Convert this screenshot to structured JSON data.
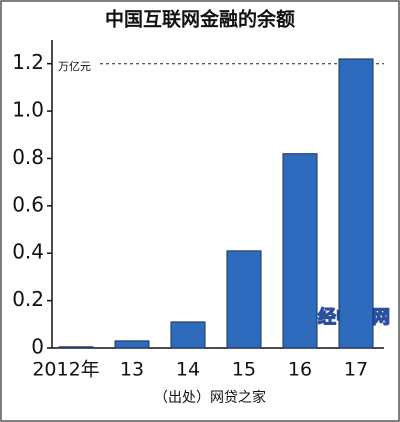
{
  "chart_data": {
    "type": "bar",
    "title": "中国互联网金融的余额",
    "unit_label": "万亿元",
    "categories": [
      "2012年",
      "13",
      "14",
      "15",
      "16",
      "17"
    ],
    "values": [
      0.005,
      0.03,
      0.11,
      0.41,
      0.82,
      1.22
    ],
    "color": "#2f6bbd",
    "ylim": [
      0,
      1.3
    ],
    "yticks": [
      0,
      0.2,
      0.4,
      0.6,
      0.8,
      {
        "value": 1,
        "label": "1.0"
      },
      1.2
    ],
    "source": "（出处）网贷之家",
    "watermark": "日经中文网"
  }
}
